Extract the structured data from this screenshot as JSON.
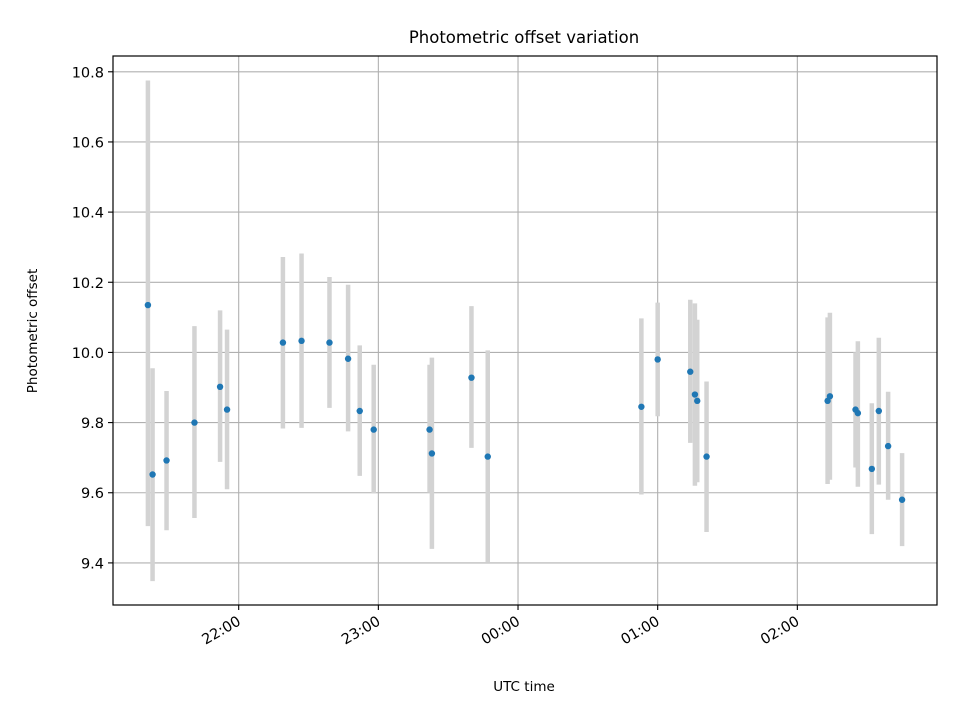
{
  "chart_data": {
    "type": "scatter",
    "title": "Photometric offset variation",
    "xlabel": "UTC time",
    "ylabel": "Photometric offset",
    "grid": true,
    "x_ticks": [
      "22:00",
      "23:00",
      "00:00",
      "01:00",
      "02:00"
    ],
    "y_ticks": [
      "9.4",
      "9.6",
      "9.8",
      "10.0",
      "10.2",
      "10.4",
      "10.6",
      "10.8"
    ],
    "xlim": [
      "21:06",
      "03:00"
    ],
    "ylim": [
      9.28,
      10.845
    ],
    "colors": {
      "point": "#1f77b4",
      "errorbar": "#d3d3d3",
      "grid": "#b0b0b0"
    },
    "points": [
      {
        "x": "21:21",
        "y": 10.135,
        "ylo": 9.505,
        "yhi": 10.775
      },
      {
        "x": "21:23",
        "y": 9.652,
        "ylo": 9.348,
        "yhi": 9.955
      },
      {
        "x": "21:29",
        "y": 9.692,
        "ylo": 9.493,
        "yhi": 9.89
      },
      {
        "x": "21:41",
        "y": 9.8,
        "ylo": 9.528,
        "yhi": 10.075
      },
      {
        "x": "21:52",
        "y": 9.902,
        "ylo": 9.688,
        "yhi": 10.12
      },
      {
        "x": "21:55",
        "y": 9.837,
        "ylo": 9.61,
        "yhi": 10.065
      },
      {
        "x": "22:19",
        "y": 10.028,
        "ylo": 9.783,
        "yhi": 10.272
      },
      {
        "x": "22:27",
        "y": 10.033,
        "ylo": 9.785,
        "yhi": 10.282
      },
      {
        "x": "22:39",
        "y": 10.028,
        "ylo": 9.842,
        "yhi": 10.215
      },
      {
        "x": "22:47",
        "y": 9.982,
        "ylo": 9.775,
        "yhi": 10.193
      },
      {
        "x": "22:52",
        "y": 9.833,
        "ylo": 9.648,
        "yhi": 10.02
      },
      {
        "x": "22:58",
        "y": 9.78,
        "ylo": 9.598,
        "yhi": 9.965
      },
      {
        "x": "23:22",
        "y": 9.78,
        "ylo": 9.6,
        "yhi": 9.965
      },
      {
        "x": "23:23",
        "y": 9.712,
        "ylo": 9.44,
        "yhi": 9.985
      },
      {
        "x": "23:40",
        "y": 9.928,
        "ylo": 9.728,
        "yhi": 10.132
      },
      {
        "x": "23:47",
        "y": 9.703,
        "ylo": 9.4,
        "yhi": 10.006
      },
      {
        "x": "00:53",
        "y": 9.845,
        "ylo": 9.595,
        "yhi": 10.097
      },
      {
        "x": "01:00",
        "y": 9.98,
        "ylo": 9.818,
        "yhi": 10.142
      },
      {
        "x": "01:14",
        "y": 9.945,
        "ylo": 9.742,
        "yhi": 10.15
      },
      {
        "x": "01:16",
        "y": 9.88,
        "ylo": 9.62,
        "yhi": 10.14
      },
      {
        "x": "01:17",
        "y": 9.862,
        "ylo": 9.63,
        "yhi": 10.093
      },
      {
        "x": "01:21",
        "y": 9.703,
        "ylo": 9.488,
        "yhi": 9.917
      },
      {
        "x": "02:13",
        "y": 9.862,
        "ylo": 9.625,
        "yhi": 10.1
      },
      {
        "x": "02:14",
        "y": 9.875,
        "ylo": 9.637,
        "yhi": 10.113
      },
      {
        "x": "02:25",
        "y": 9.837,
        "ylo": 9.672,
        "yhi": 10.0
      },
      {
        "x": "02:26",
        "y": 9.827,
        "ylo": 9.617,
        "yhi": 10.032
      },
      {
        "x": "02:32",
        "y": 9.668,
        "ylo": 9.482,
        "yhi": 9.855
      },
      {
        "x": "02:35",
        "y": 9.833,
        "ylo": 9.623,
        "yhi": 10.042
      },
      {
        "x": "02:39",
        "y": 9.733,
        "ylo": 9.58,
        "yhi": 9.888
      },
      {
        "x": "02:45",
        "y": 9.58,
        "ylo": 9.448,
        "yhi": 9.713
      }
    ]
  }
}
